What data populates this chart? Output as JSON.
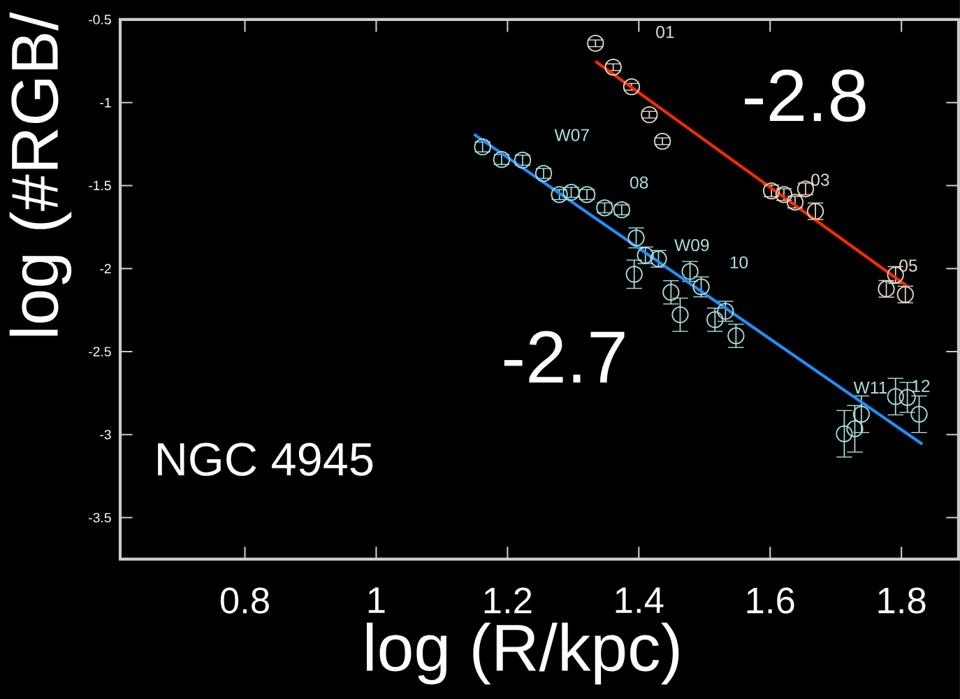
{
  "chart_data": {
    "type": "scatter",
    "xlabel": "log (R/kpc)",
    "ylabel": "log (#RGB/",
    "xlim": [
      0.61,
      1.887
    ],
    "ylim": [
      -3.75,
      -0.5
    ],
    "xticks": [
      0.8,
      1,
      1.2,
      1.4,
      1.6,
      1.8
    ],
    "yticks": [
      -0.5,
      -1,
      -1.5,
      -2,
      -2.5,
      -3,
      -3.5
    ],
    "grid": false,
    "series": [
      {
        "color": "#e6d9c8",
        "marker": "circle",
        "x": [
          1.334,
          1.361,
          1.389,
          1.416,
          1.436,
          1.602,
          1.621,
          1.638,
          1.654,
          1.669,
          1.777,
          1.791,
          1.806
        ],
        "values": [
          -0.643,
          -0.787,
          -0.905,
          -1.073,
          -1.233,
          -1.532,
          -1.554,
          -1.6,
          -1.52,
          -1.655,
          -2.122,
          -2.038,
          -2.156
        ],
        "errors": [
          0.02,
          0.02,
          0.02,
          0.02,
          0.02,
          0.035,
          0.035,
          0.035,
          0.035,
          0.05,
          0.05,
          0.05,
          0.05
        ]
      },
      {
        "color": "#a8e0e0",
        "marker": "circle",
        "x": [
          1.162,
          1.191,
          1.223,
          1.255,
          1.279,
          1.297,
          1.321,
          1.348,
          1.374,
          1.396,
          1.41,
          1.43,
          1.393,
          1.478,
          1.495,
          1.449,
          1.463,
          1.532,
          1.516,
          1.548,
          1.713,
          1.729,
          1.739,
          1.791,
          1.809,
          1.827
        ],
        "values": [
          -1.267,
          -1.343,
          -1.347,
          -1.427,
          -1.554,
          -1.541,
          -1.554,
          -1.634,
          -1.646,
          -1.815,
          -1.92,
          -1.941,
          -2.034,
          -2.017,
          -2.11,
          -2.143,
          -2.278,
          -2.257,
          -2.308,
          -2.405,
          -2.995,
          -2.965,
          -2.877,
          -2.771,
          -2.776,
          -2.877
        ],
        "errors": [
          0.03,
          0.03,
          0.03,
          0.03,
          0.03,
          0.03,
          0.03,
          0.03,
          0.03,
          0.06,
          0.05,
          0.05,
          0.085,
          0.06,
          0.06,
          0.07,
          0.1,
          0.06,
          0.07,
          0.07,
          0.14,
          0.14,
          0.11,
          0.11,
          0.09,
          0.11
        ]
      },
      {
        "type": "line",
        "marker": "none",
        "color": "#ff2a00",
        "x": [
          1.334,
          1.81
        ],
        "values": [
          -0.752,
          -2.109
        ]
      },
      {
        "type": "line",
        "marker": "none",
        "color": "#1e90ff",
        "x": [
          1.149,
          1.832
        ],
        "values": [
          -1.191,
          -3.058
        ]
      }
    ],
    "annotations": [
      "01",
      "W07",
      "08",
      "03",
      "W09",
      "10",
      "05",
      "W11",
      "12",
      "-2.8",
      "-2.7",
      "NGC 4945"
    ]
  }
}
